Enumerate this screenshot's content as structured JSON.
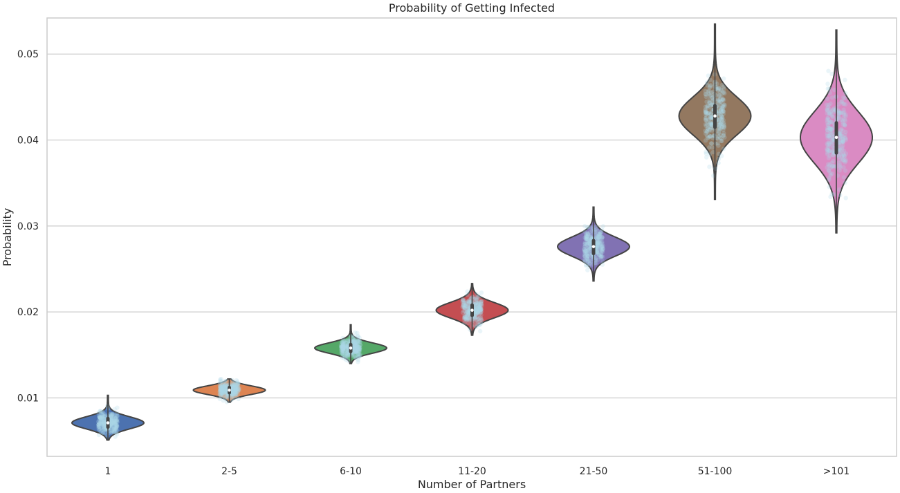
{
  "chart_data": {
    "type": "violin",
    "title": "Probability of Getting Infected",
    "xlabel": "Number of Partners",
    "ylabel": "Probability",
    "ylim": [
      0.0032,
      0.0542
    ],
    "yticks": [
      0.01,
      0.02,
      0.03,
      0.04,
      0.05
    ],
    "ytick_labels": [
      "0.01",
      "0.02",
      "0.03",
      "0.04",
      "0.05"
    ],
    "grid": true,
    "jitter_color": "#add8e6",
    "categories": [
      {
        "label": "1",
        "color": "#4c72b0",
        "min": 0.0051,
        "max": 0.0103,
        "median": 0.0071,
        "q1": 0.0066,
        "q3": 0.0076,
        "spread": 0.0007
      },
      {
        "label": "2-5",
        "color": "#dd8452",
        "min": 0.0095,
        "max": 0.0122,
        "median": 0.0109,
        "q1": 0.0106,
        "q3": 0.0112,
        "spread": 0.0005
      },
      {
        "label": "6-10",
        "color": "#55a868",
        "min": 0.014,
        "max": 0.0185,
        "median": 0.0158,
        "q1": 0.0154,
        "q3": 0.0162,
        "spread": 0.0006
      },
      {
        "label": "11-20",
        "color": "#c44e52",
        "min": 0.0173,
        "max": 0.0233,
        "median": 0.0202,
        "q1": 0.0196,
        "q3": 0.0208,
        "spread": 0.0009
      },
      {
        "label": "21-50",
        "color": "#8172b3",
        "min": 0.0236,
        "max": 0.0322,
        "median": 0.0276,
        "q1": 0.0268,
        "q3": 0.0283,
        "spread": 0.0011
      },
      {
        "label": "51-100",
        "color": "#937860",
        "min": 0.0331,
        "max": 0.0535,
        "median": 0.0428,
        "q1": 0.0415,
        "q3": 0.044,
        "spread": 0.0022
      },
      {
        "label": ">101",
        "color": "#da8bc3",
        "min": 0.0292,
        "max": 0.0528,
        "median": 0.0403,
        "q1": 0.0385,
        "q3": 0.042,
        "spread": 0.003
      }
    ]
  }
}
